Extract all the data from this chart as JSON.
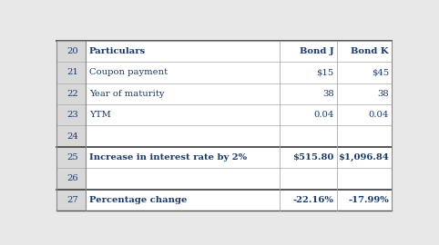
{
  "rows": [
    {
      "row_num": "20",
      "label": "Particulars",
      "bond_j": "Bond J",
      "bond_k": "Bond K",
      "bold": true,
      "thick_top": true
    },
    {
      "row_num": "21",
      "label": "Coupon payment",
      "bond_j": "$15",
      "bond_k": "$45",
      "bold": false,
      "thick_top": false
    },
    {
      "row_num": "22",
      "label": "Year of maturity",
      "bond_j": "38",
      "bond_k": "38",
      "bold": false,
      "thick_top": false
    },
    {
      "row_num": "23",
      "label": "YTM",
      "bond_j": "0.04",
      "bond_k": "0.04",
      "bold": false,
      "thick_top": false
    },
    {
      "row_num": "24",
      "label": "",
      "bond_j": "",
      "bond_k": "",
      "bold": false,
      "thick_top": false
    },
    {
      "row_num": "25",
      "label": "Increase in interest rate by 2%",
      "bond_j": "$515.80",
      "bond_k": "$1,096.84",
      "bold": true,
      "thick_top": true
    },
    {
      "row_num": "26",
      "label": "",
      "bond_j": "",
      "bond_k": "",
      "bold": false,
      "thick_top": false
    },
    {
      "row_num": "27",
      "label": "Percentage change",
      "bond_j": "-22.16%",
      "bond_k": "-17.99%",
      "bold": true,
      "thick_top": true
    }
  ],
  "bg_color": "#e8e8e8",
  "table_bg": "#ffffff",
  "num_col_bg": "#d8d8d8",
  "text_color": "#1a3a6b",
  "font_family": "DejaVu Serif",
  "figsize": [
    4.82,
    2.7
  ],
  "dpi": 100
}
